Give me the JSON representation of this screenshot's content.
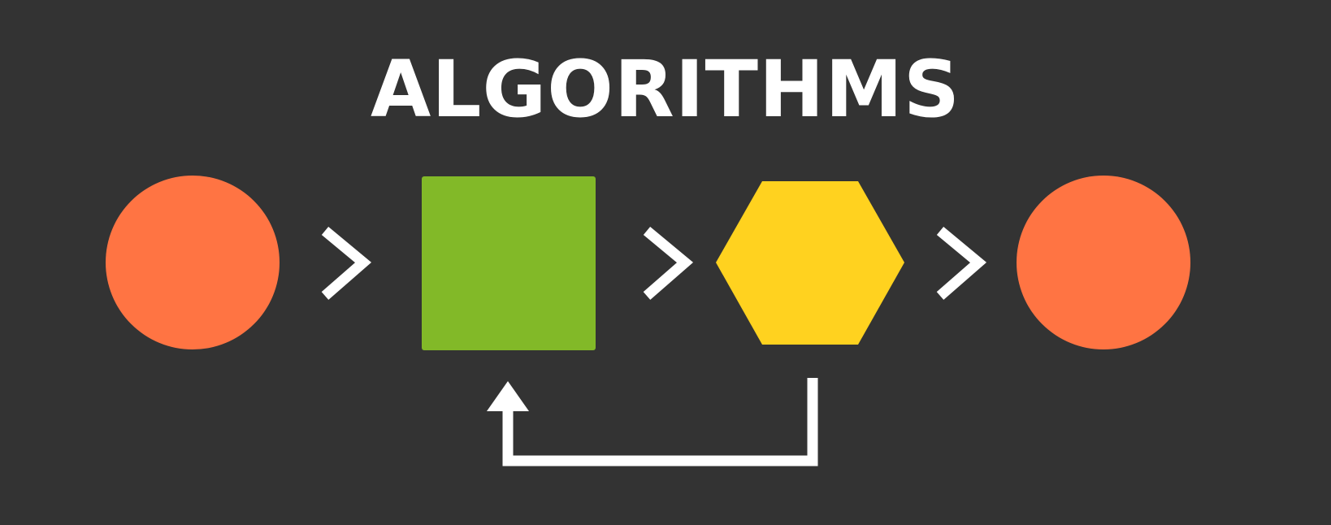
{
  "title": "ALGORITHMS",
  "colors": {
    "background": "#333333",
    "start_circle": "#FF7443",
    "process_square": "#82B928",
    "decision_hexagon": "#FFD21F",
    "end_circle": "#FF7443",
    "arrows": "#FFFFFF",
    "title": "#FFFFFF"
  },
  "flow": {
    "nodes": [
      "circle",
      "square",
      "hexagon",
      "circle"
    ],
    "connectors": [
      "chevron-right-icon",
      "chevron-right-icon",
      "chevron-right-icon"
    ],
    "loop": {
      "from": "hexagon",
      "to": "square"
    }
  }
}
